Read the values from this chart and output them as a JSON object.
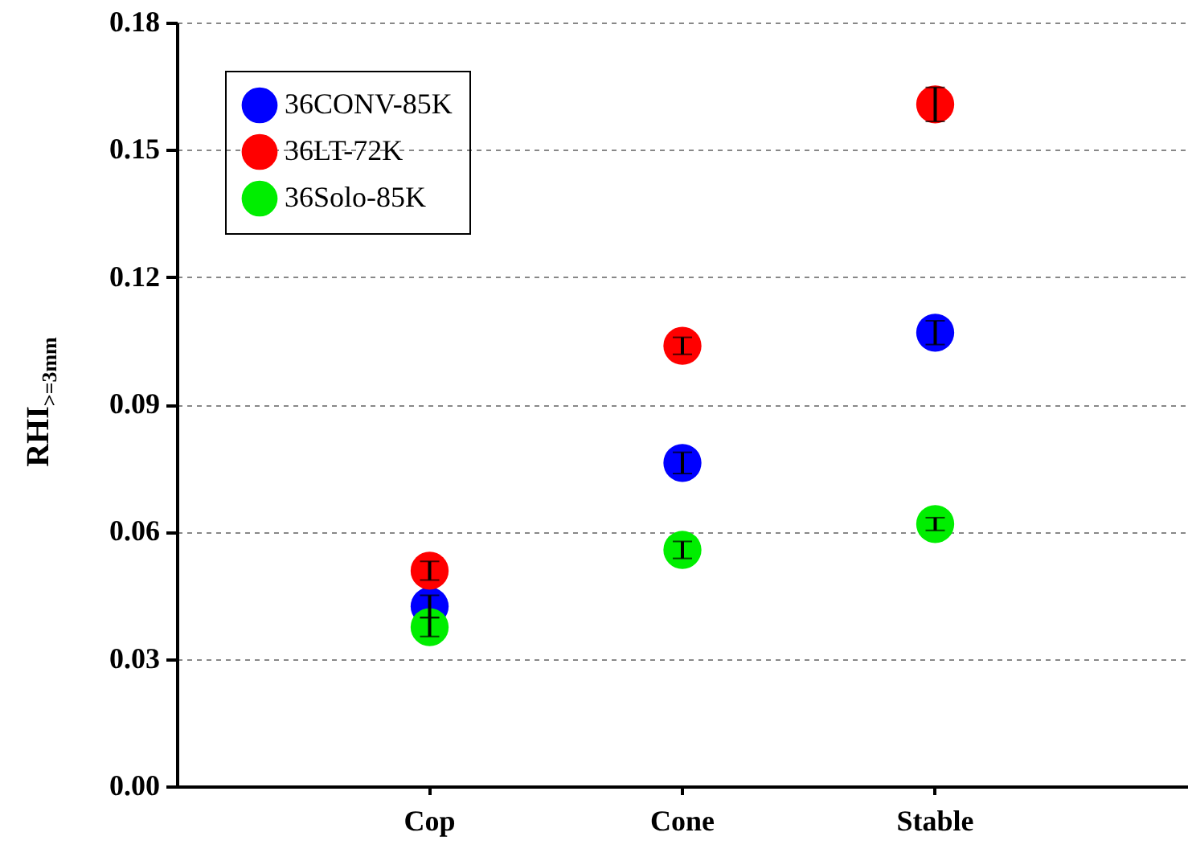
{
  "chart_data": {
    "type": "scatter",
    "ylabel": "RHI$_{>=3mm}$",
    "categories": [
      "Cop",
      "Cone",
      "Stable"
    ],
    "series": [
      {
        "name": "36CONV-85K",
        "color": "#0000ff",
        "values": [
          0.0424,
          0.0762,
          0.1069
        ],
        "errors": [
          0.0026,
          0.0025,
          0.0028
        ]
      },
      {
        "name": "36LT-72K",
        "color": "#ff0000",
        "values": [
          0.0508,
          0.1038,
          0.1607
        ],
        "errors": [
          0.0022,
          0.002,
          0.004
        ]
      },
      {
        "name": "36Solo-85K",
        "color": "#00ee00",
        "values": [
          0.0375,
          0.0557,
          0.0618
        ],
        "errors": [
          0.0022,
          0.002,
          0.0015
        ]
      }
    ],
    "ylim": [
      0,
      0.18
    ],
    "yticks": [
      {
        "value": 0,
        "label": "0.00"
      },
      0.03,
      0.06,
      0.09,
      0.12,
      0.15,
      0.18
    ],
    "grid": "y",
    "legend": "top left",
    "marker": "circle"
  }
}
